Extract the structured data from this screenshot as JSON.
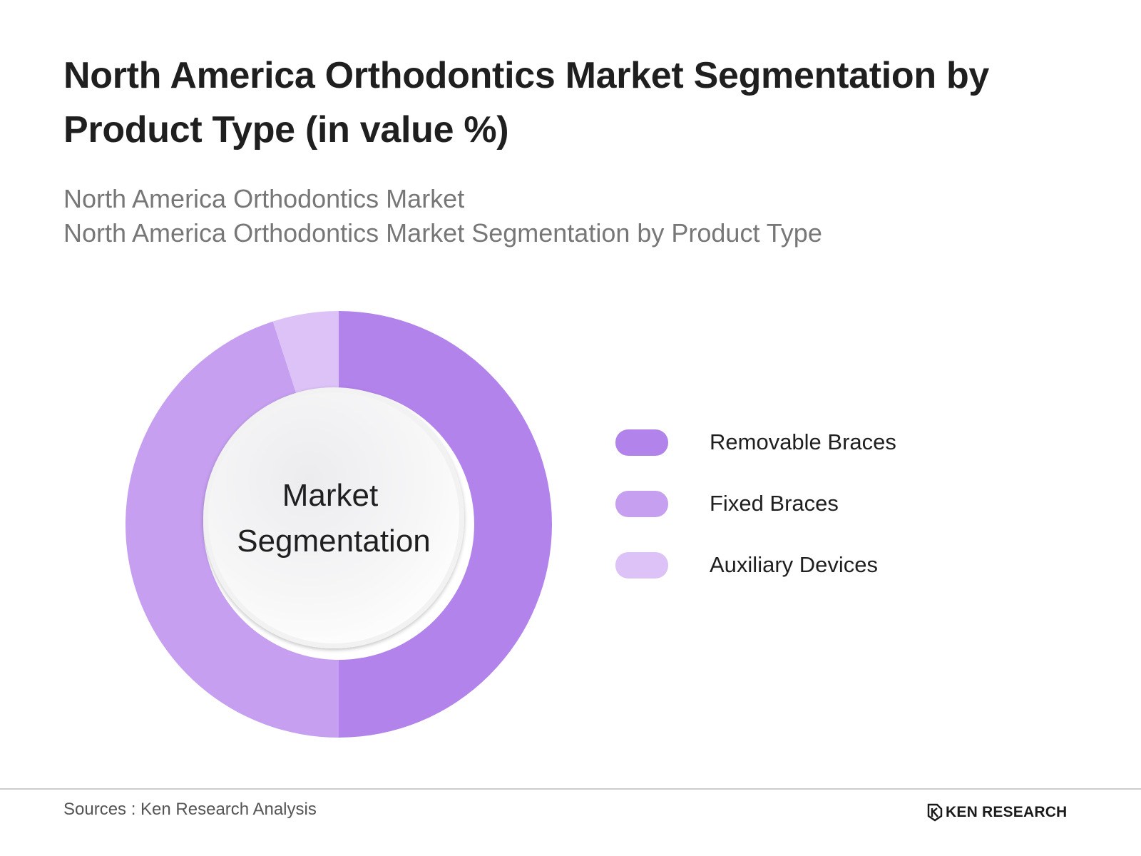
{
  "title": "North America Orthodontics Market Segmentation by Product Type (in value %)",
  "subtitle_line1": "North America Orthodontics Market",
  "subtitle_line2": "North America Orthodontics Market Segmentation by Product Type",
  "chart_data": {
    "type": "pie",
    "variant": "donut",
    "center_label": [
      "Market",
      "Segmentation"
    ],
    "categories": [
      "Removable Braces",
      "Fixed Braces",
      "Auxiliary Devices"
    ],
    "values": [
      50,
      45,
      5
    ],
    "unit": "%",
    "colors": [
      "#b383ec",
      "#c69ff0",
      "#dcc2f7"
    ],
    "legend_position": "right",
    "start_angle": "top",
    "direction": "clockwise"
  },
  "footer": {
    "source": "Sources : Ken Research Analysis",
    "brand": "KEN RESEARCH"
  }
}
